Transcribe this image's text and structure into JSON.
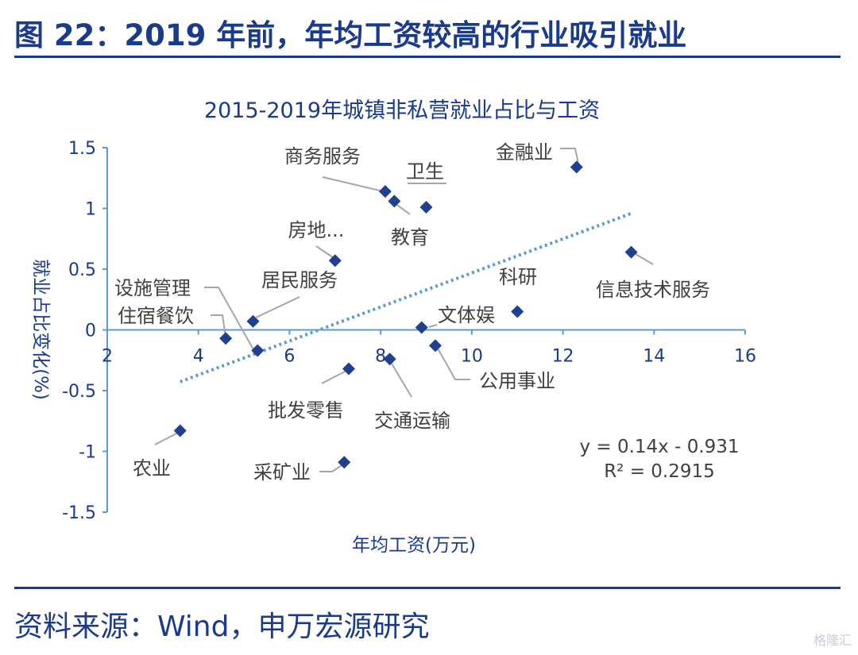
{
  "header": {
    "title": "图 22：2019 年前，年均工资较高的行业吸引就业"
  },
  "chart_data": {
    "type": "scatter",
    "title": "2015-2019年城镇非私营就业占比与工资",
    "xlabel": "年均工资(万元)",
    "ylabel": "就业占比变化(%)",
    "xlim": [
      2,
      16
    ],
    "ylim": [
      -1.5,
      1.5
    ],
    "xticks": [
      2,
      4,
      6,
      8,
      10,
      12,
      14,
      16
    ],
    "yticks": [
      1.5,
      1,
      0.5,
      0,
      -0.5,
      -1,
      -1.5
    ],
    "ytick_labels": [
      "1.5",
      "1",
      "0.5",
      "0",
      "-0.5",
      "-1",
      "-1.5"
    ],
    "grid": false,
    "legend": "none",
    "colors": {
      "marker": "#1f3f8f",
      "axis": "#5b9bd5",
      "trendline": "#5b9bd5",
      "text": "#1a3a8c",
      "label": "#404040"
    },
    "points": [
      {
        "label": "金融业",
        "x": 12.3,
        "y": 1.34
      },
      {
        "label": "商务服务",
        "x": 8.1,
        "y": 1.14
      },
      {
        "label": "卫生",
        "x": 9.0,
        "y": 1.01
      },
      {
        "label": "教育",
        "x": 8.3,
        "y": 1.06
      },
      {
        "label": "房地...",
        "x": 7.0,
        "y": 0.57
      },
      {
        "label": "信息技术服务",
        "x": 13.5,
        "y": 0.64
      },
      {
        "label": "居民服务",
        "x": 5.2,
        "y": 0.07
      },
      {
        "label": "科研",
        "x": 11.0,
        "y": 0.15
      },
      {
        "label": "文体娱",
        "x": 8.9,
        "y": 0.02
      },
      {
        "label": "设施管理",
        "x": 5.3,
        "y": -0.17
      },
      {
        "label": "住宿餐饮",
        "x": 4.6,
        "y": -0.07
      },
      {
        "label": "公用事业",
        "x": 9.2,
        "y": -0.13
      },
      {
        "label": "批发零售",
        "x": 7.3,
        "y": -0.32
      },
      {
        "label": "交通运输",
        "x": 8.2,
        "y": -0.24
      },
      {
        "label": "农业",
        "x": 3.6,
        "y": -0.83
      },
      {
        "label": "采矿业",
        "x": 7.2,
        "y": -1.09
      }
    ],
    "trendline": {
      "slope": 0.14,
      "intercept": -0.931,
      "x_start": 3.6,
      "x_end": 13.5
    },
    "equation": "y = 0.14x - 0.931",
    "r_squared": "R² = 0.2915"
  },
  "source": "资料来源：Wind，申万宏源研究",
  "watermark": "格隆汇"
}
